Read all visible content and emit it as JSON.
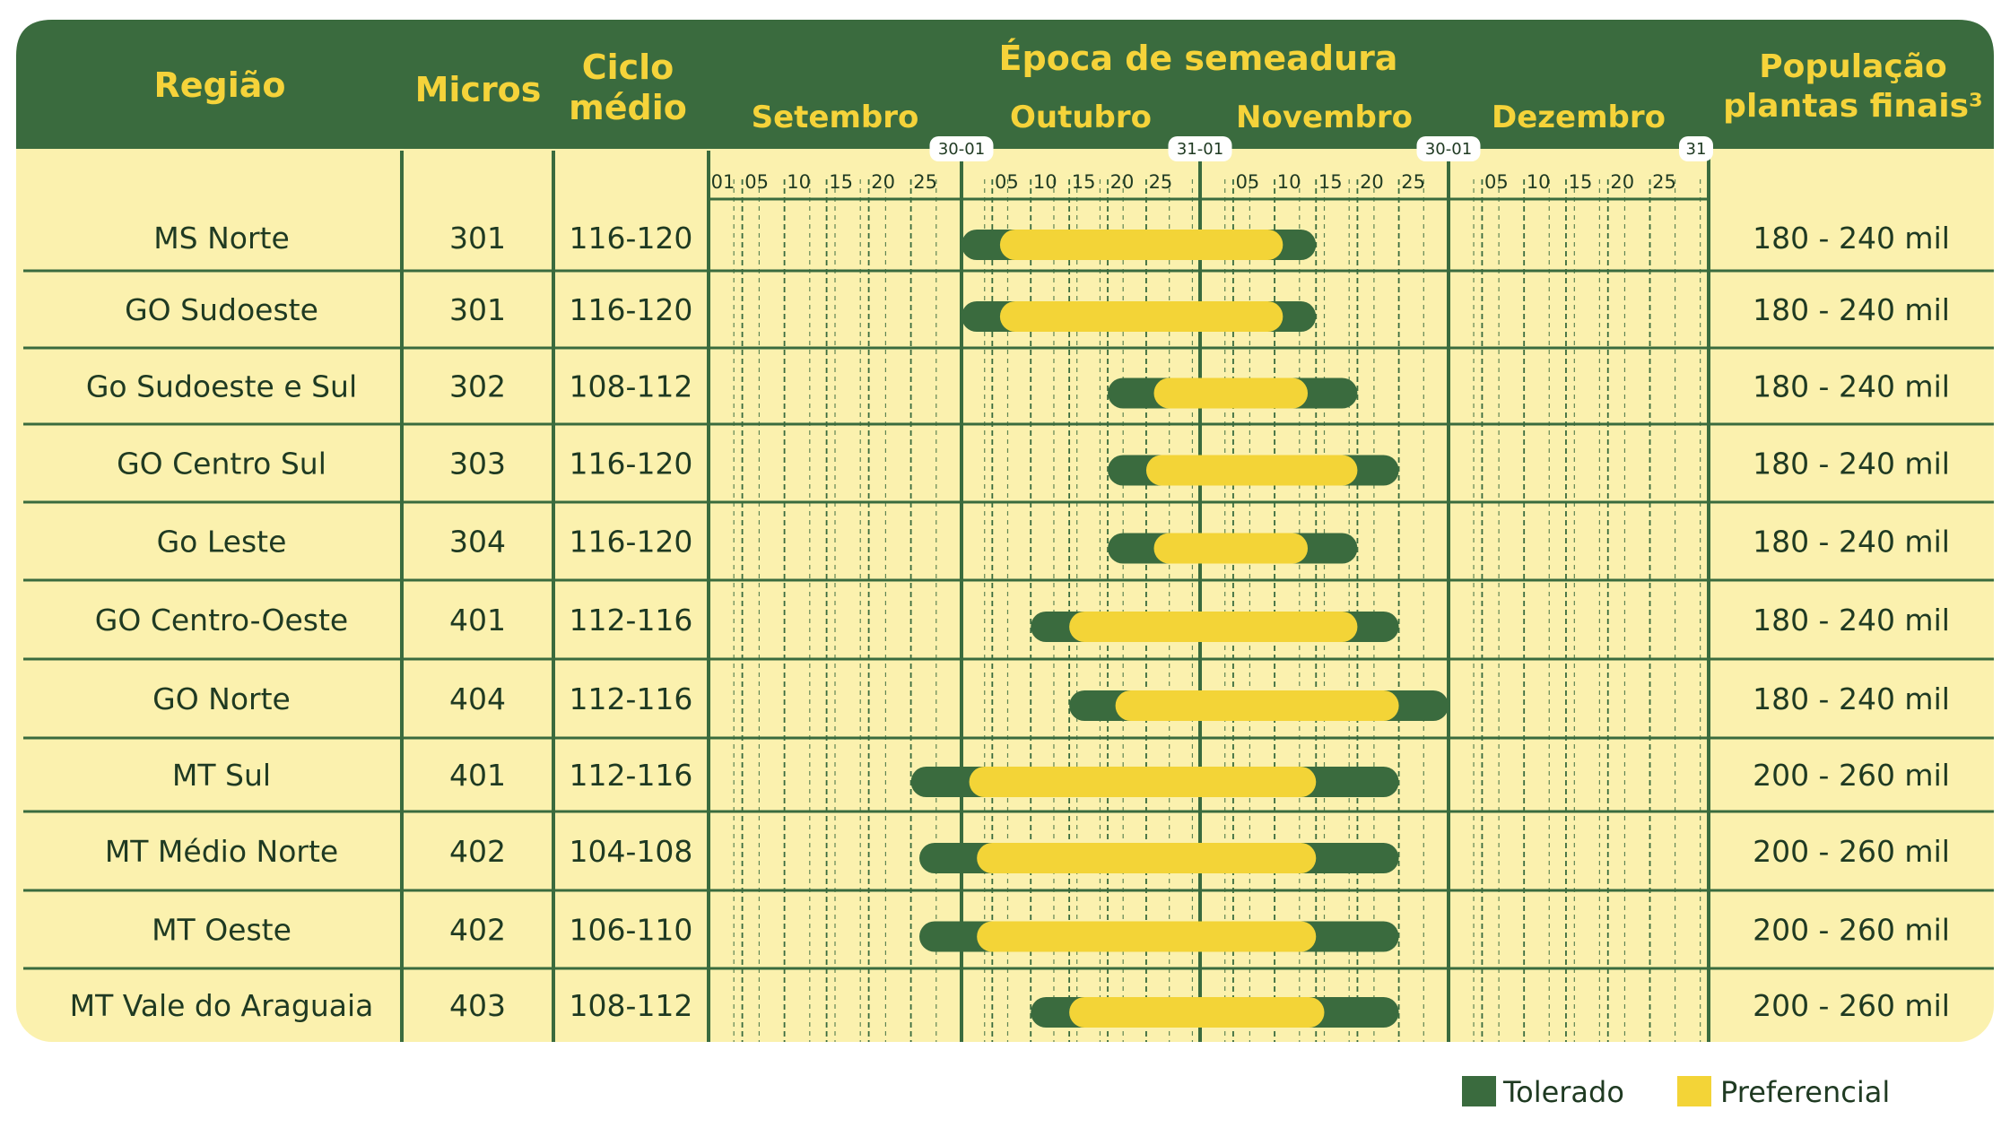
{
  "colors": {
    "header_bg": "#3a6b3e",
    "header_text": "#f5d33a",
    "panel_bg": "#fbf1ae",
    "grid": "#3a6b3e",
    "tolerado": "#3a6b3e",
    "preferencial": "#f3d437",
    "text": "#1f3a22"
  },
  "header": {
    "regiao": "Região",
    "micros": "Micros",
    "ciclo_line1": "Ciclo",
    "ciclo_line2": "médio",
    "epoca": "Época de semeadura",
    "populacao_line1": "População",
    "populacao_line2": "plantas finais³"
  },
  "chart_data": {
    "type": "table",
    "months": [
      {
        "name": "Setembro",
        "days": 30,
        "ticks": [
          "01",
          "05",
          "10",
          "15",
          "20",
          "25"
        ]
      },
      {
        "name": "Outubro",
        "days": 31,
        "ticks": [
          "05",
          "10",
          "15",
          "20",
          "25"
        ]
      },
      {
        "name": "Novembro",
        "days": 30,
        "ticks": [
          "05",
          "10",
          "15",
          "20",
          "25"
        ]
      },
      {
        "name": "Dezembro",
        "days": 31,
        "ticks": [
          "05",
          "10",
          "15",
          "20",
          "25"
        ]
      }
    ],
    "boundary_badges": [
      "30-01",
      "31-01",
      "30-01",
      "31"
    ],
    "rows": [
      {
        "regiao": "MS Norte",
        "micros": "301",
        "ciclo": "116-120",
        "populacao": "180 - 240 mil",
        "tolerado": [
          "01/10",
          "15/11"
        ],
        "preferencial": [
          "06/10",
          "11/11"
        ]
      },
      {
        "regiao": "GO Sudoeste",
        "micros": "301",
        "ciclo": "116-120",
        "populacao": "180 - 240 mil",
        "tolerado": [
          "01/10",
          "15/11"
        ],
        "preferencial": [
          "06/10",
          "11/11"
        ]
      },
      {
        "regiao": "Go Sudoeste e Sul",
        "micros": "302",
        "ciclo": "108-112",
        "populacao": "180 - 240 mil",
        "tolerado": [
          "20/10",
          "20/11"
        ],
        "preferencial": [
          "26/10",
          "14/11"
        ]
      },
      {
        "regiao": "GO Centro Sul",
        "micros": "303",
        "ciclo": "116-120",
        "populacao": "180 - 240 mil",
        "tolerado": [
          "20/10",
          "25/11"
        ],
        "preferencial": [
          "25/10",
          "20/11"
        ]
      },
      {
        "regiao": "Go Leste",
        "micros": "304",
        "ciclo": "116-120",
        "populacao": "180 - 240 mil",
        "tolerado": [
          "20/10",
          "20/11"
        ],
        "preferencial": [
          "26/10",
          "14/11"
        ]
      },
      {
        "regiao": "GO  Centro-Oeste",
        "micros": "401",
        "ciclo": "112-116",
        "populacao": "180 - 240 mil",
        "tolerado": [
          "10/10",
          "25/11"
        ],
        "preferencial": [
          "15/10",
          "20/11"
        ]
      },
      {
        "regiao": "GO Norte",
        "micros": "404",
        "ciclo": "112-116",
        "populacao": "180 - 240 mil",
        "tolerado": [
          "15/10",
          "01/12"
        ],
        "preferencial": [
          "21/10",
          "25/11"
        ]
      },
      {
        "regiao": "MT Sul",
        "micros": "401",
        "ciclo": "112-116",
        "populacao": "200 - 260 mil",
        "tolerado": [
          "25/09",
          "25/11"
        ],
        "preferencial": [
          "02/10",
          "15/11"
        ]
      },
      {
        "regiao": "MT Médio Norte",
        "micros": "402",
        "ciclo": "104-108",
        "populacao": "200 - 260 mil",
        "tolerado": [
          "26/09",
          "25/11"
        ],
        "preferencial": [
          "03/10",
          "15/11"
        ]
      },
      {
        "regiao": "MT Oeste",
        "micros": "402",
        "ciclo": "106-110",
        "populacao": "200 - 260 mil",
        "tolerado": [
          "26/09",
          "25/11"
        ],
        "preferencial": [
          "03/10",
          "15/11"
        ]
      },
      {
        "regiao": "MT Vale do Araguaia",
        "micros": "403",
        "ciclo": "108-112",
        "populacao": "200 - 260 mil",
        "tolerado": [
          "10/10",
          "25/11"
        ],
        "preferencial": [
          "15/10",
          "16/11"
        ]
      }
    ]
  },
  "legend": [
    {
      "label": "Tolerado",
      "color": "#3a6b3e"
    },
    {
      "label": "Preferencial",
      "color": "#f3d437"
    }
  ]
}
